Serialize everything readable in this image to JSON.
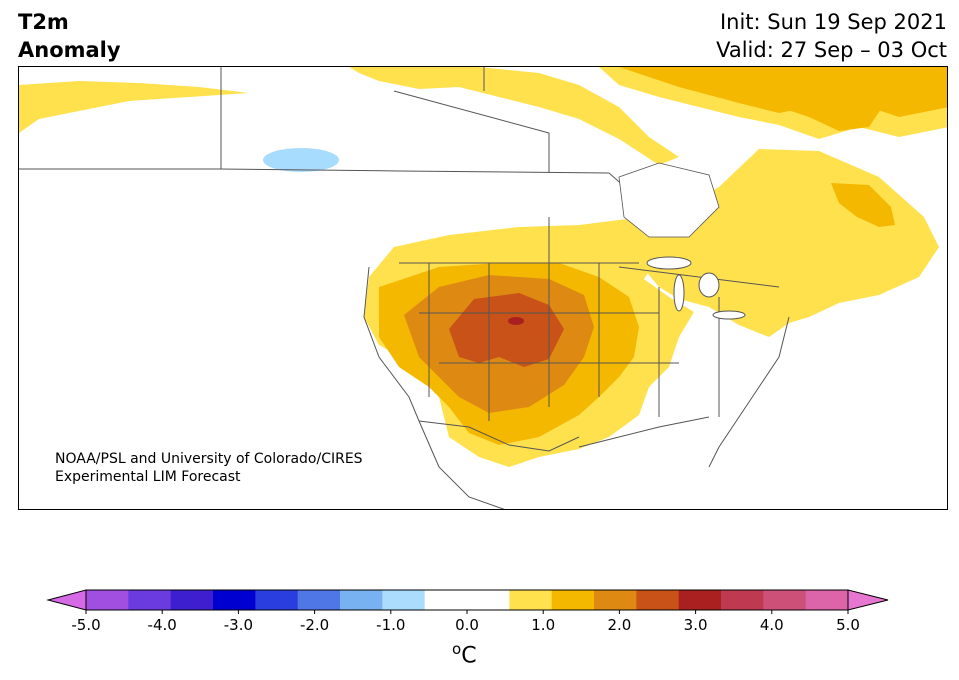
{
  "header": {
    "title_line1": "T2m",
    "title_line2": "Anomaly",
    "init": "Init: Sun 19 Sep 2021",
    "valid": "Valid: 27 Sep – 03 Oct"
  },
  "map": {
    "region": "North America",
    "colors": {
      "land": "#ffffff",
      "pos_0_5_1_0": "#ffe14d",
      "pos_1_0_1_5": "#f4b800",
      "pos_1_5_2_0": "#de8a12",
      "pos_2_0_2_5": "#c85218",
      "pos_2_5_3_0": "#aa2020",
      "neg_0_5_1_0": "#a8dcff",
      "border": "#555555"
    }
  },
  "credit": {
    "line1": "NOAA/PSL and University of Colorado/CIRES",
    "line2": "Experimental LIM Forecast"
  },
  "colorbar": {
    "colors": [
      "#d66ae6",
      "#a04fe0",
      "#6b3be0",
      "#3e1fd0",
      "#0000d0",
      "#2a3ee0",
      "#4f78e6",
      "#78b2f0",
      "#acdcfd",
      "#ffffff",
      "#ffffff",
      "#ffe14d",
      "#f4b800",
      "#de8a12",
      "#c85218",
      "#aa2020",
      "#bf3a50",
      "#cc5078",
      "#dc64a8",
      "#e676d0"
    ],
    "ticks": [
      "-5.0",
      "-4.0",
      "-3.0",
      "-2.0",
      "-1.0",
      "0.0",
      "1.0",
      "2.0",
      "3.0",
      "4.0",
      "5.0"
    ],
    "unit_base": "C",
    "unit_sup": "o"
  }
}
